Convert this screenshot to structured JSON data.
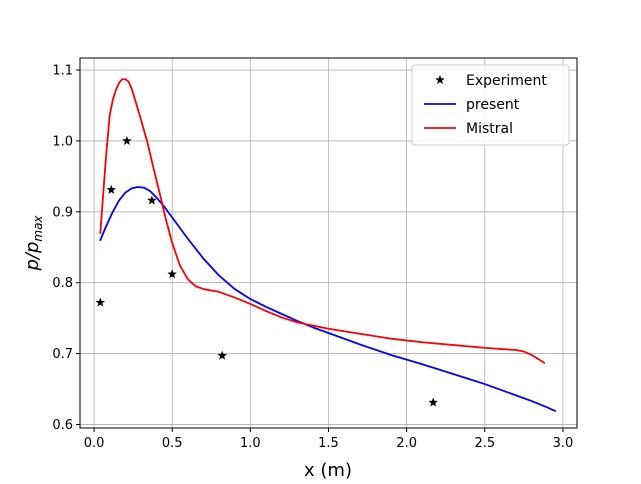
{
  "chart_data": {
    "type": "line",
    "title": "",
    "xlabel": "x (m)",
    "ylabel_base": "p/p",
    "ylabel_sub": "max",
    "xlim": [
      -0.09,
      3.09
    ],
    "ylim": [
      0.595,
      1.117
    ],
    "grid": true,
    "legend_position": "top-right",
    "x_ticks": [
      {
        "value": 0.0,
        "label": "0.0"
      },
      {
        "value": 0.5,
        "label": "0.5"
      },
      {
        "value": 1.0,
        "label": "1.0"
      },
      {
        "value": 1.5,
        "label": "1.5"
      },
      {
        "value": 2.0,
        "label": "2.0"
      },
      {
        "value": 2.5,
        "label": "2.5"
      },
      {
        "value": 3.0,
        "label": "3.0"
      }
    ],
    "y_ticks": [
      {
        "value": 0.6,
        "label": "0.6"
      },
      {
        "value": 0.7,
        "label": "0.7"
      },
      {
        "value": 0.8,
        "label": "0.8"
      },
      {
        "value": 0.9,
        "label": "0.9"
      },
      {
        "value": 1.0,
        "label": "1.0"
      },
      {
        "value": 1.1,
        "label": "1.1"
      }
    ],
    "series": [
      {
        "name": "Experiment",
        "kind": "scatter",
        "marker": "star",
        "color": "#000000",
        "x": [
          0.04,
          0.11,
          0.21,
          0.37,
          0.5,
          0.82,
          2.17
        ],
        "y": [
          0.772,
          0.931,
          1.0,
          0.916,
          0.812,
          0.697,
          0.631
        ]
      },
      {
        "name": "present",
        "kind": "line",
        "color": "#0000ff",
        "x": [
          0.04,
          0.08,
          0.12,
          0.16,
          0.2,
          0.24,
          0.28,
          0.32,
          0.36,
          0.4,
          0.45,
          0.5,
          0.6,
          0.7,
          0.8,
          0.9,
          1.0,
          1.1,
          1.2,
          1.3,
          1.4,
          1.5,
          1.7,
          1.9,
          2.1,
          2.3,
          2.5,
          2.7,
          2.8,
          2.9,
          2.95
        ],
        "y": [
          0.86,
          0.881,
          0.9,
          0.916,
          0.927,
          0.933,
          0.935,
          0.934,
          0.929,
          0.92,
          0.907,
          0.892,
          0.862,
          0.834,
          0.81,
          0.791,
          0.777,
          0.766,
          0.756,
          0.746,
          0.737,
          0.729,
          0.713,
          0.698,
          0.685,
          0.671,
          0.657,
          0.641,
          0.633,
          0.624,
          0.619
        ]
      },
      {
        "name": "Mistral",
        "kind": "line",
        "color": "#ff0000",
        "x": [
          0.04,
          0.06,
          0.08,
          0.1,
          0.12,
          0.14,
          0.16,
          0.18,
          0.2,
          0.22,
          0.24,
          0.26,
          0.3,
          0.34,
          0.38,
          0.42,
          0.46,
          0.5,
          0.55,
          0.6,
          0.65,
          0.7,
          0.8,
          0.9,
          1.0,
          1.1,
          1.2,
          1.3,
          1.5,
          1.7,
          1.9,
          2.1,
          2.3,
          2.5,
          2.7,
          2.75,
          2.8,
          2.88
        ],
        "y": [
          0.87,
          0.93,
          0.987,
          1.036,
          1.058,
          1.072,
          1.082,
          1.087,
          1.087,
          1.084,
          1.074,
          1.06,
          1.03,
          0.999,
          0.962,
          0.926,
          0.889,
          0.856,
          0.824,
          0.805,
          0.795,
          0.791,
          0.787,
          0.779,
          0.77,
          0.76,
          0.751,
          0.744,
          0.735,
          0.728,
          0.721,
          0.716,
          0.712,
          0.708,
          0.705,
          0.703,
          0.698,
          0.687
        ]
      }
    ]
  }
}
